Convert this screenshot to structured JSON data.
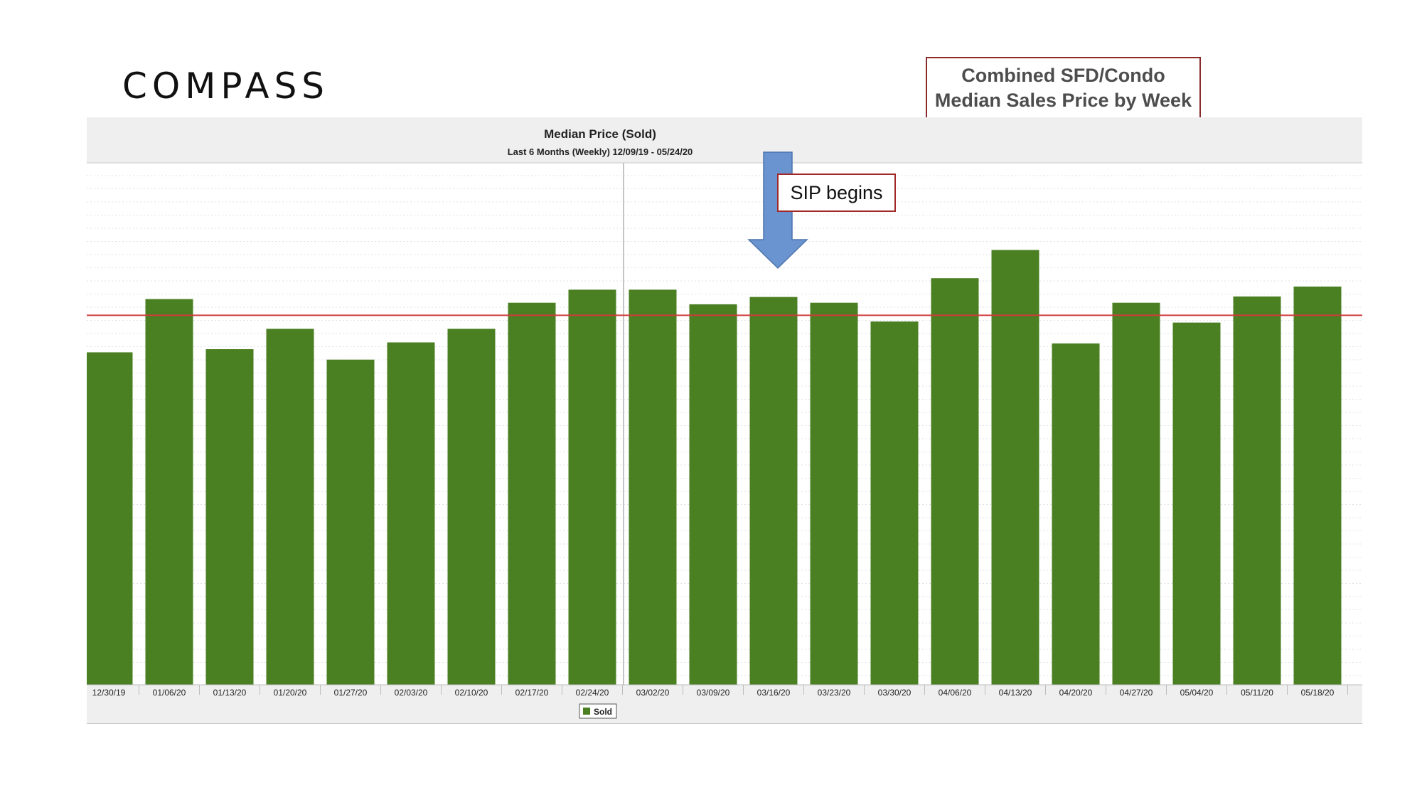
{
  "logo": "COMPASS",
  "title_box": {
    "line1": "Combined SFD/Condo",
    "line2": "Median Sales Price by Week"
  },
  "callout": "SIP begins",
  "colors": {
    "bar": "#4a7f22",
    "median_line": "#d03b3b",
    "arrow": "#6a94cf",
    "callout_border": "#a02828"
  },
  "chart_data": {
    "type": "bar",
    "title": "Median Price (Sold)",
    "subtitle": "Last 6 Months (Weekly) 12/09/19 - 05/24/20",
    "xlabel": "",
    "ylabel": "",
    "categories": [
      "12/30/19",
      "01/06/20",
      "01/13/20",
      "01/20/20",
      "01/27/20",
      "02/03/20",
      "02/10/20",
      "02/17/20",
      "02/24/20",
      "03/02/20",
      "03/09/20",
      "03/16/20",
      "03/23/20",
      "03/30/20",
      "04/06/20",
      "04/13/20",
      "04/20/20",
      "04/27/20",
      "05/04/20",
      "05/11/20",
      "05/18/20"
    ],
    "series": [
      {
        "name": "Sold",
        "values": [
          63.7,
          73.9,
          64.3,
          68.2,
          62.3,
          65.6,
          68.2,
          73.2,
          75.7,
          75.7,
          72.9,
          74.3,
          73.2,
          69.6,
          77.9,
          83.3,
          65.4,
          73.2,
          69.4,
          74.4,
          76.3
        ]
      }
    ],
    "ylim": [
      0,
      100
    ],
    "reference_line": 70.8,
    "annotation": {
      "text": "SIP begins",
      "at_category": "03/16/20"
    },
    "grid": true,
    "legend": "bottom-center"
  }
}
